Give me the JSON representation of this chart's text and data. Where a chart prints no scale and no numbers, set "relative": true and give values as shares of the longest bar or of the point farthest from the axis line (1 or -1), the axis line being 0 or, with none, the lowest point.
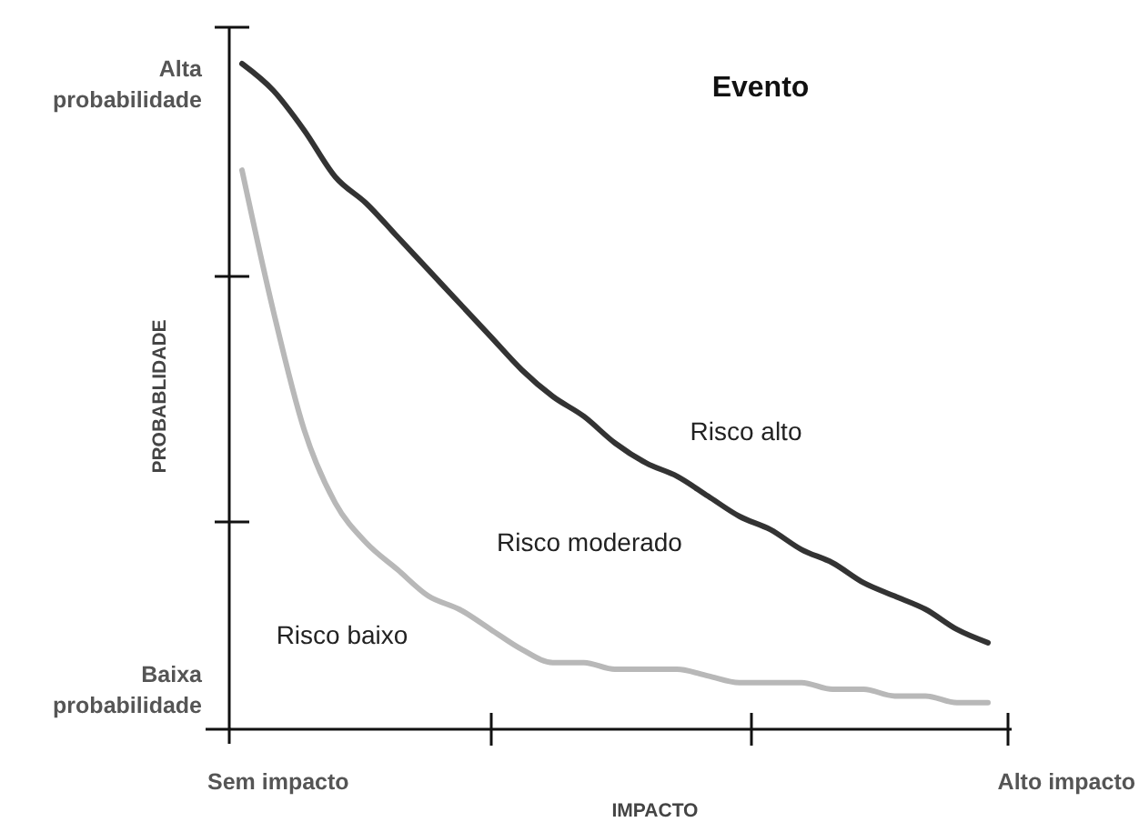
{
  "chart_data": {
    "type": "line",
    "title": "Evento",
    "xlabel": "IMPACTO",
    "ylabel": "PROBABLIDADE",
    "relative": true,
    "categories": [
      null,
      null,
      null,
      null,
      null,
      null,
      null,
      null,
      null,
      null,
      null,
      null,
      null,
      null,
      null,
      null,
      null,
      null,
      null,
      null,
      null,
      null,
      null,
      null,
      null
    ],
    "series": [
      {
        "color": "#333333",
        "values": [
          1.0,
          0.96,
          0.9,
          0.83,
          0.79,
          0.74,
          0.69,
          0.64,
          0.59,
          0.54,
          0.5,
          0.47,
          0.43,
          0.4,
          0.38,
          0.35,
          0.32,
          0.3,
          0.27,
          0.25,
          0.22,
          0.2,
          0.18,
          0.15,
          0.13
        ]
      },
      {
        "color": "#b8b8b8",
        "values": [
          0.84,
          0.63,
          0.45,
          0.34,
          0.28,
          0.24,
          0.2,
          0.18,
          0.15,
          0.12,
          0.1,
          0.1,
          0.09,
          0.09,
          0.09,
          0.08,
          0.07,
          0.07,
          0.07,
          0.06,
          0.06,
          0.05,
          0.05,
          0.04,
          0.04
        ]
      }
    ],
    "annotations": [
      "Alta probabilidade",
      "Baixa probabilidade",
      "Sem impacto",
      "Alto impacto",
      "Risco alto",
      "Risco moderado",
      "Risco baixo"
    ]
  }
}
